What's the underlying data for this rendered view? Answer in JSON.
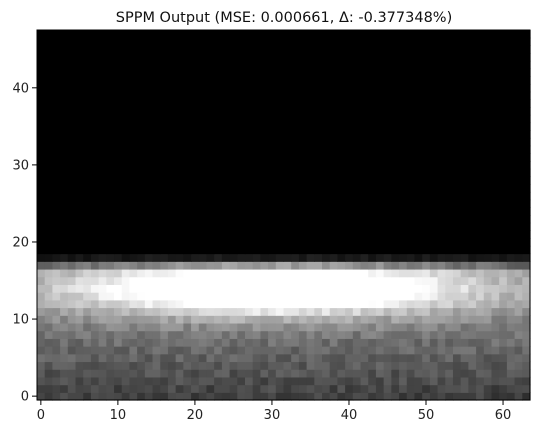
{
  "chart_data": {
    "type": "heatmap",
    "title": "SPPM Output (MSE: 0.000661, Δ: -0.377348%)",
    "xlabel": "",
    "ylabel": "",
    "xlim": [
      -0.5,
      63.5
    ],
    "ylim": [
      -0.5,
      47.5
    ],
    "x_ticks": [
      0,
      10,
      20,
      30,
      40,
      50,
      60
    ],
    "y_ticks": [
      0,
      10,
      20,
      30,
      40
    ],
    "grid": false,
    "colormap": "gray",
    "value_range": [
      0,
      1
    ],
    "grid_size": {
      "cols": 64,
      "rows": 48
    },
    "dark_region": {
      "row_from": 19,
      "row_to": 47,
      "value": 0.0
    },
    "glow": {
      "description": "bright elliptical band of light above a noisy gray floor",
      "center_x": 30,
      "center_y": 14,
      "peak_value": 1.0,
      "bright_rows": [
        8,
        18
      ],
      "floor_rows": [
        0,
        8
      ],
      "floor_value_range": [
        0.25,
        0.55
      ]
    }
  }
}
